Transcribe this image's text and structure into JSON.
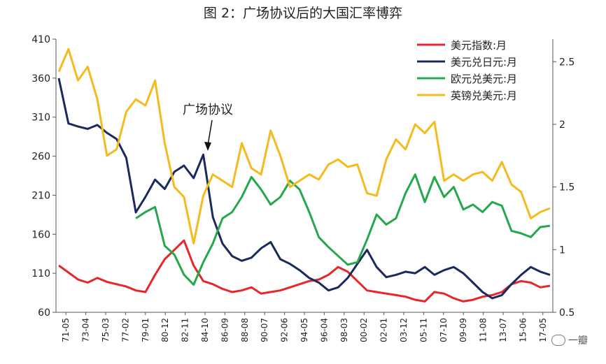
{
  "chart_data": {
    "type": "line",
    "title": "图 2：广场协议后的大国汇率博弈",
    "y_left": {
      "ylim": [
        60,
        410
      ],
      "ticks": [
        60,
        110,
        160,
        210,
        260,
        310,
        360,
        410
      ]
    },
    "y_right": {
      "ylim": [
        0.5,
        2.68
      ],
      "ticks": [
        0.5,
        1,
        1.5,
        2,
        2.5
      ],
      "tick_labels": [
        "0.5",
        "1",
        "1.5",
        "2",
        "2.5"
      ]
    },
    "x_ticks": [
      "71-05",
      "73-04",
      "75-03",
      "77-02",
      "79-01",
      "80-12",
      "82-11",
      "84-10",
      "86-09",
      "88-08",
      "90-07",
      "92-06",
      "94-05",
      "96-04",
      "98-03",
      "00-02",
      "02-01",
      "03-12",
      "05-11",
      "07-10",
      "09-09",
      "11-08",
      "13-07",
      "15-06",
      "17-05"
    ],
    "legend_position": "top-right",
    "annotation": {
      "text": "广场协议",
      "x_label": "84-10"
    },
    "series": [
      {
        "name": "美元指数:月",
        "axis": "left",
        "color": "#e8262a",
        "values": [
          120,
          111,
          102,
          98,
          104,
          99,
          96,
          93,
          88,
          86,
          108,
          128,
          140,
          152,
          120,
          100,
          96,
          90,
          86,
          88,
          92,
          84,
          86,
          88,
          92,
          96,
          100,
          102,
          108,
          118,
          112,
          100,
          88,
          86,
          84,
          82,
          80,
          76,
          74,
          86,
          84,
          78,
          74,
          76,
          80,
          82,
          86,
          96,
          100,
          98,
          92,
          94
        ]
      },
      {
        "name": "美元兑日元:月",
        "axis": "left",
        "color": "#1a2a5c",
        "values": [
          360,
          302,
          298,
          295,
          300,
          290,
          282,
          258,
          188,
          208,
          230,
          218,
          240,
          248,
          232,
          262,
          182,
          148,
          132,
          126,
          130,
          142,
          150,
          128,
          122,
          114,
          104,
          98,
          88,
          92,
          104,
          122,
          140,
          118,
          105,
          108,
          112,
          110,
          118,
          108,
          114,
          118,
          110,
          98,
          86,
          78,
          82,
          96,
          108,
          118,
          112,
          108
        ]
      },
      {
        "name": "欧元兑美元:月",
        "axis": "right",
        "color": "#25a84a",
        "values": [
          null,
          null,
          null,
          null,
          null,
          null,
          null,
          null,
          1.25,
          1.3,
          1.34,
          1.03,
          0.96,
          0.8,
          0.72,
          0.9,
          1.05,
          1.25,
          1.3,
          1.42,
          1.58,
          1.48,
          1.36,
          1.42,
          1.55,
          1.48,
          1.3,
          1.1,
          1.02,
          0.95,
          0.88,
          0.9,
          1.08,
          1.28,
          1.2,
          1.25,
          1.45,
          1.6,
          1.38,
          1.58,
          1.42,
          1.5,
          1.32,
          1.36,
          1.3,
          1.38,
          1.35,
          1.15,
          1.13,
          1.1,
          1.18,
          1.19
        ]
      },
      {
        "name": "英镑兑美元:月",
        "axis": "right",
        "color": "#f3bb1d",
        "values": [
          2.42,
          2.6,
          2.35,
          2.46,
          2.2,
          1.75,
          1.8,
          2.1,
          2.2,
          2.15,
          2.35,
          1.85,
          1.5,
          1.42,
          1.05,
          1.43,
          1.6,
          1.55,
          1.5,
          1.85,
          1.65,
          1.6,
          1.95,
          1.75,
          1.5,
          1.55,
          1.6,
          1.56,
          1.68,
          1.72,
          1.66,
          1.68,
          1.45,
          1.43,
          1.72,
          1.88,
          1.8,
          2.0,
          1.93,
          2.02,
          1.55,
          1.6,
          1.55,
          1.6,
          1.62,
          1.55,
          1.7,
          1.52,
          1.46,
          1.25,
          1.3,
          1.33
        ]
      }
    ]
  },
  "watermark": "一瓣"
}
